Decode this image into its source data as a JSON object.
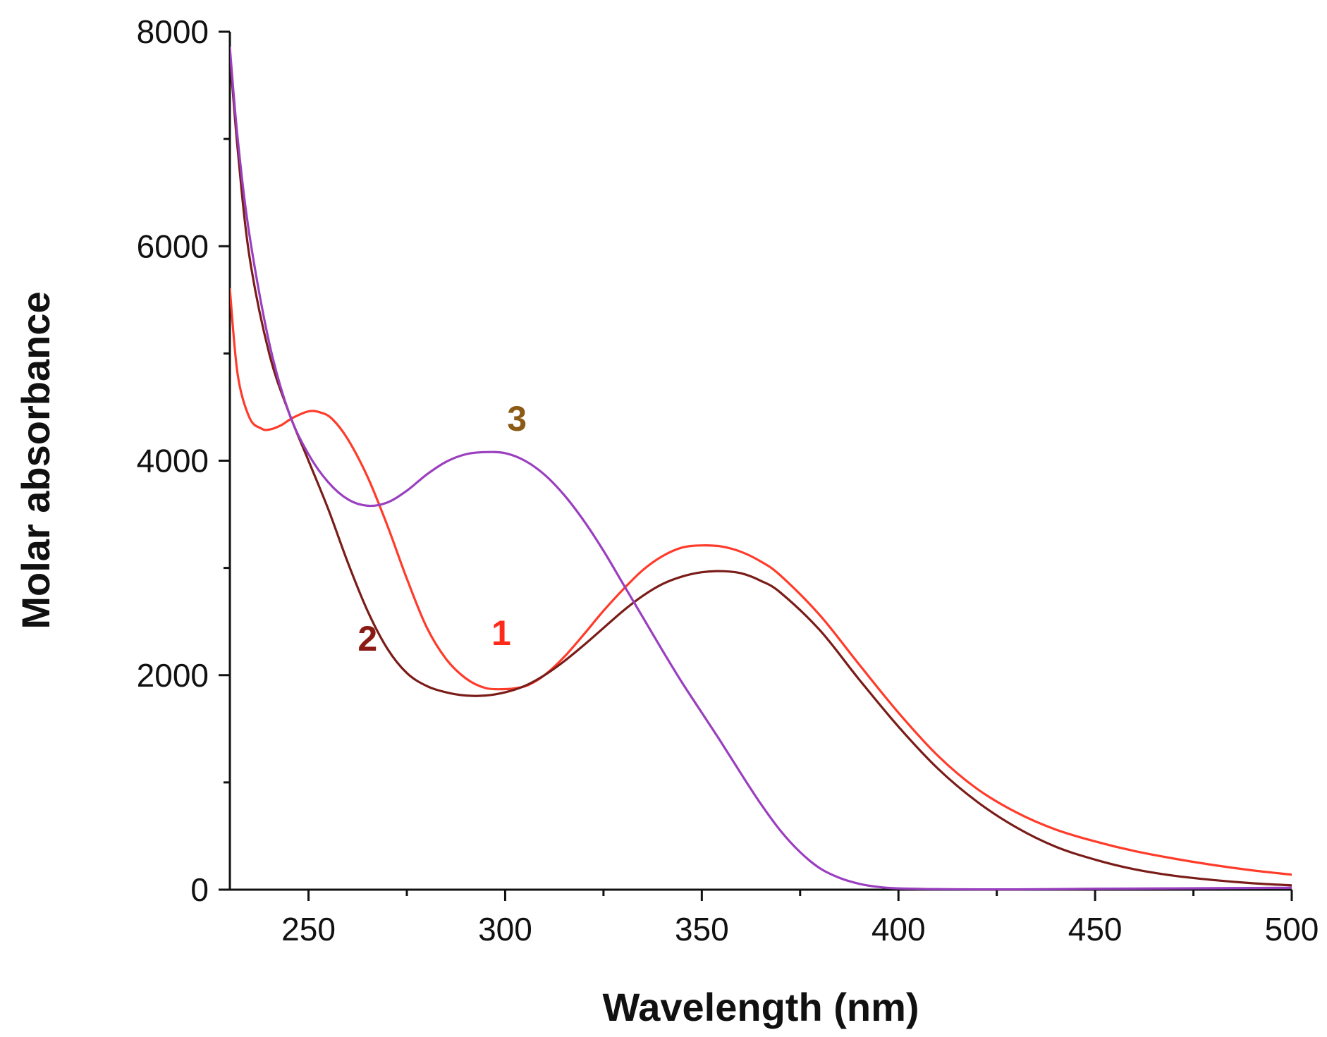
{
  "chart_data": {
    "type": "line",
    "title": "",
    "xlabel": "Wavelength (nm)",
    "ylabel": "Molar absorbance",
    "xlim": [
      230,
      500
    ],
    "ylim": [
      0,
      8000
    ],
    "x_major_ticks": [
      250,
      300,
      350,
      400,
      450,
      500
    ],
    "x_minor_ticks": [
      275,
      325,
      375,
      425,
      475
    ],
    "y_major_ticks": [
      0,
      2000,
      4000,
      6000,
      8000
    ],
    "y_minor_ticks": [
      1000,
      3000,
      5000,
      7000
    ],
    "grid": false,
    "legend": "inline labels",
    "series": [
      {
        "name": "1",
        "color": "#ff3b2a",
        "label_color": "#ff2a1a",
        "label_at": [
          299,
          2280
        ],
        "x": [
          230,
          232,
          235,
          238,
          240,
          243,
          246,
          250,
          253,
          256,
          260,
          265,
          270,
          275,
          280,
          285,
          290,
          295,
          300,
          303,
          306,
          310,
          315,
          320,
          325,
          330,
          335,
          340,
          345,
          350,
          355,
          360,
          365,
          370,
          380,
          390,
          400,
          410,
          420,
          430,
          440,
          450,
          460,
          470,
          480,
          490,
          500
        ],
        "values": [
          5600,
          4800,
          4400,
          4300,
          4290,
          4330,
          4400,
          4460,
          4450,
          4390,
          4200,
          3850,
          3400,
          2900,
          2450,
          2150,
          1970,
          1880,
          1870,
          1880,
          1910,
          2000,
          2170,
          2380,
          2600,
          2800,
          2980,
          3110,
          3190,
          3210,
          3200,
          3150,
          3060,
          2930,
          2560,
          2100,
          1650,
          1250,
          940,
          720,
          560,
          450,
          360,
          290,
          230,
          180,
          140
        ]
      },
      {
        "name": "2",
        "color": "#7a1c18",
        "label_color": "#8b1a14",
        "label_at": [
          265,
          2230
        ],
        "x": [
          230,
          232,
          235,
          240,
          245,
          250,
          255,
          260,
          265,
          270,
          275,
          280,
          285,
          290,
          295,
          300,
          305,
          310,
          315,
          320,
          325,
          330,
          335,
          340,
          345,
          350,
          355,
          360,
          365,
          370,
          380,
          390,
          400,
          410,
          420,
          430,
          440,
          450,
          460,
          470,
          480,
          490,
          500
        ],
        "values": [
          7800,
          6900,
          5900,
          5000,
          4450,
          4000,
          3550,
          3050,
          2600,
          2250,
          2020,
          1900,
          1840,
          1810,
          1810,
          1840,
          1900,
          2000,
          2130,
          2280,
          2440,
          2600,
          2740,
          2850,
          2920,
          2960,
          2970,
          2950,
          2880,
          2770,
          2420,
          1960,
          1520,
          1130,
          820,
          580,
          400,
          280,
          190,
          130,
          90,
          60,
          40
        ]
      },
      {
        "name": "3",
        "color": "#9a3fbf",
        "label_color": "#8b5a14",
        "label_at": [
          303,
          4280
        ],
        "x": [
          230,
          232,
          235,
          240,
          245,
          250,
          255,
          260,
          265,
          270,
          275,
          280,
          285,
          290,
          295,
          300,
          305,
          310,
          315,
          320,
          325,
          330,
          335,
          340,
          345,
          350,
          355,
          360,
          365,
          370,
          375,
          380,
          385,
          390,
          395,
          400,
          410,
          420,
          430,
          440,
          450,
          460,
          470,
          480,
          490,
          500
        ],
        "values": [
          7850,
          7000,
          6100,
          5100,
          4450,
          4060,
          3800,
          3640,
          3580,
          3610,
          3720,
          3870,
          3990,
          4060,
          4080,
          4070,
          4000,
          3870,
          3680,
          3440,
          3160,
          2850,
          2540,
          2230,
          1930,
          1650,
          1370,
          1080,
          800,
          550,
          350,
          200,
          110,
          55,
          25,
          12,
          5,
          3,
          3,
          5,
          8,
          10,
          12,
          14,
          16,
          18
        ]
      }
    ]
  }
}
